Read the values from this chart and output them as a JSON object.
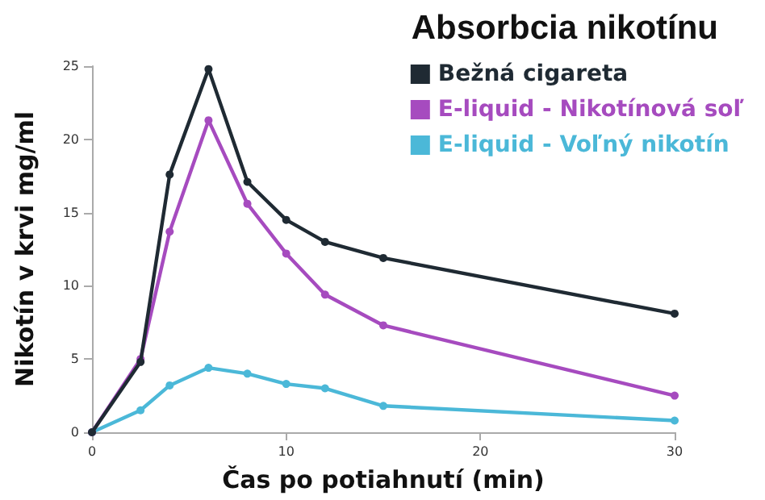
{
  "chart_data": {
    "type": "line",
    "legend_title": "Absorbcia nikotínu",
    "xlabel": "Čas po potiahnutí (min)",
    "ylabel": "Nikotín v krvi mg/ml",
    "x": [
      0,
      2.5,
      4,
      6,
      8,
      10,
      12,
      15,
      30
    ],
    "series": [
      {
        "name": "Bežná cigareta",
        "color": "#1f2a33",
        "values": [
          0,
          4.8,
          17.6,
          24.8,
          17.1,
          14.5,
          13.0,
          11.9,
          8.1
        ]
      },
      {
        "name": "E-liquid - Nikotínová soľ",
        "color": "#a64bbf",
        "values": [
          0,
          5.0,
          13.7,
          21.3,
          15.6,
          12.2,
          9.4,
          7.3,
          2.5
        ]
      },
      {
        "name": "E-liquid - Voľný nikotín",
        "color": "#4bb8d8",
        "values": [
          0,
          1.5,
          3.2,
          4.4,
          4.0,
          3.3,
          3.0,
          1.8,
          0.8
        ]
      }
    ],
    "xlim": [
      0,
      30
    ],
    "xticks": [
      0,
      10,
      20,
      30
    ],
    "ylim": [
      0,
      25
    ],
    "yticks": [
      0,
      5,
      10,
      15,
      20,
      25
    ],
    "grid": false,
    "legend": "top right",
    "marker": "circle",
    "line_style": "solid"
  }
}
